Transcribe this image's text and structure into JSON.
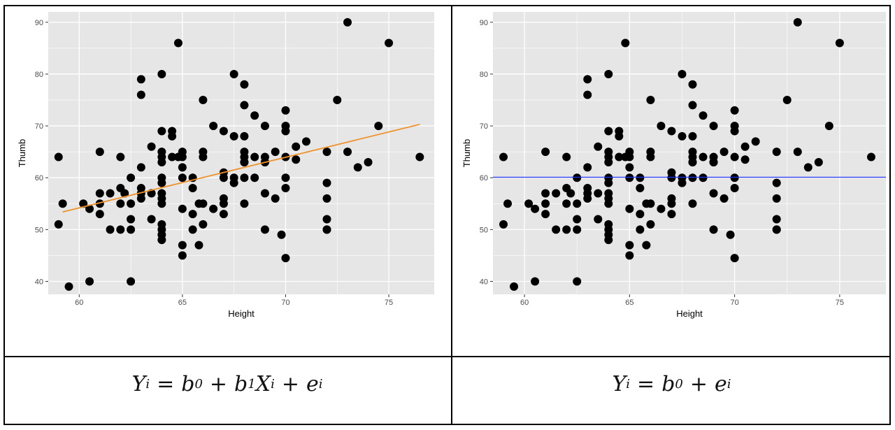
{
  "chart_data": [
    {
      "type": "scatter",
      "xlabel": "Height",
      "ylabel": "Thumb",
      "xlim": [
        58.5,
        77.2
      ],
      "ylim": [
        37.5,
        92.0
      ],
      "xticks": [
        60,
        65,
        70,
        75
      ],
      "yticks": [
        40,
        50,
        60,
        70,
        80,
        90
      ],
      "grid": true,
      "points": {
        "x": [
          59,
          59,
          59.2,
          59.5,
          60.2,
          60.5,
          60.5,
          61,
          61,
          61,
          61,
          61.5,
          61.5,
          62,
          62,
          62,
          62,
          62.2,
          62.5,
          62.5,
          62.5,
          62.5,
          62.5,
          63,
          63,
          63,
          63,
          63,
          63,
          63.5,
          63.5,
          63.5,
          64,
          64,
          64,
          64,
          64,
          64,
          64,
          64,
          64,
          64,
          64,
          64,
          64,
          64,
          64.5,
          64.5,
          64.5,
          64.8,
          64.8,
          65,
          65,
          65,
          65,
          65,
          65,
          65,
          65.5,
          65.5,
          65.5,
          65.5,
          65.8,
          65.8,
          66,
          66,
          66,
          66,
          66,
          66.5,
          66.5,
          67,
          67,
          67,
          67,
          67,
          67,
          67.5,
          67.5,
          67.5,
          67.5,
          68,
          68,
          68,
          68,
          68,
          68,
          68,
          68,
          68,
          68.5,
          68.5,
          68.5,
          69,
          69,
          69,
          69,
          69,
          69,
          69.5,
          69.5,
          69.8,
          70,
          70,
          70,
          70,
          70,
          70,
          70,
          70.5,
          70.5,
          71,
          72,
          72,
          72,
          72,
          72,
          72,
          72.5,
          73,
          73,
          73.5,
          74,
          74.5,
          75,
          76.5
        ],
        "y": [
          64,
          51,
          55,
          39,
          55,
          54,
          40,
          65,
          57,
          55,
          53,
          57,
          50,
          64,
          58,
          55,
          50,
          57,
          60,
          55,
          52,
          50,
          40,
          79,
          76,
          62,
          58,
          57,
          56,
          66,
          57,
          52,
          80,
          69,
          65,
          64,
          63,
          60,
          59,
          57,
          56,
          55,
          51,
          50,
          49,
          48,
          69,
          68,
          64,
          86,
          64,
          65,
          64,
          62,
          60,
          54,
          47,
          45,
          60,
          58,
          53,
          50,
          55,
          47,
          75,
          65,
          64,
          55,
          51,
          70,
          54,
          69,
          61,
          60,
          56,
          55,
          53,
          80,
          68,
          60,
          59,
          78,
          74,
          68,
          65,
          64,
          63,
          63,
          60,
          55,
          72,
          64,
          60,
          70,
          64,
          63,
          63,
          57,
          50,
          65,
          56,
          49,
          73,
          70,
          69,
          64,
          60,
          58,
          44.5,
          66,
          63.5,
          67,
          65,
          59,
          56,
          52,
          50,
          50,
          75,
          90,
          65,
          62,
          63,
          70,
          86,
          64
        ]
      },
      "fit_line": {
        "color": "#f0922b",
        "x": [
          59.2,
          76.5
        ],
        "y": [
          53.4,
          70.3
        ]
      }
    },
    {
      "type": "scatter",
      "xlabel": "Height",
      "ylabel": "Thumb",
      "xlim": [
        58.5,
        77.2
      ],
      "ylim": [
        37.5,
        92.0
      ],
      "xticks": [
        60,
        65,
        70,
        75
      ],
      "yticks": [
        40,
        50,
        60,
        70,
        80,
        90
      ],
      "grid": true,
      "points": "same as left panel",
      "mean_line": {
        "color": "#2233ff",
        "y": 60.1
      }
    }
  ],
  "equations": {
    "left": {
      "lhs": "Y",
      "lhs_sub": "i",
      "eq": "=",
      "b0": "b",
      "b0_sub": "0",
      "plus1": "+",
      "b1": "b",
      "b1_sub": "1",
      "x": "X",
      "x_sub": "i",
      "plus2": "+",
      "e": "e",
      "e_sub": "i"
    },
    "right": {
      "lhs": "Y",
      "lhs_sub": "i",
      "eq": "=",
      "b0": "b",
      "b0_sub": "0",
      "plus1": "+",
      "e": "e",
      "e_sub": "i"
    }
  },
  "colors": {
    "panel_bg": "#e6e6e6",
    "grid": "#ffffff",
    "point": "#000000",
    "axis_text": "#4d4d4d"
  }
}
